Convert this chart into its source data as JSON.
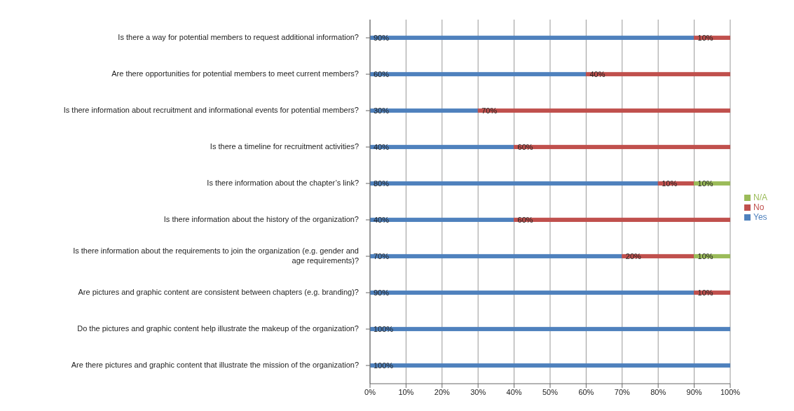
{
  "chart_data": {
    "type": "bar",
    "orientation": "horizontal",
    "stacked": true,
    "categories": [
      "Is there a way for potential members to request additional information?",
      "Are there opportunities for potential members to meet current members?",
      "Is there information about recruitment and informational events for potential members?",
      "Is there a timeline for recruitment activities?",
      "Is there information about the chapter’s link?",
      "Is there information about the history of the organization?",
      "Is there information about the requirements to join the organization (e.g. gender and age requirements)?",
      "Are pictures and graphic content are consistent between chapters (e.g. branding)?",
      "Do the pictures and graphic content help illustrate the makeup of the organization?",
      "Are there pictures and graphic content that illustrate the mission of the organization?"
    ],
    "series": [
      {
        "name": "Yes",
        "color": "#4f81bd",
        "values": [
          90,
          60,
          30,
          40,
          80,
          40,
          70,
          90,
          100,
          100
        ],
        "value_labels": [
          "90%",
          "60%",
          "30%",
          "40%",
          "80%",
          "40%",
          "70%",
          "90%",
          "100%",
          "100%"
        ]
      },
      {
        "name": "No",
        "color": "#c0504d",
        "values": [
          10,
          40,
          70,
          60,
          10,
          60,
          20,
          10,
          null,
          null
        ],
        "value_labels": [
          "10%",
          "40%",
          "70%",
          "60%",
          "10%",
          "60%",
          "20%",
          "10%",
          null,
          null
        ]
      },
      {
        "name": "N/A",
        "color": "#9bbb59",
        "values": [
          null,
          null,
          null,
          null,
          10,
          null,
          10,
          null,
          null,
          null
        ],
        "value_labels": [
          null,
          null,
          null,
          null,
          "10%",
          null,
          "10%",
          null,
          null,
          null
        ]
      }
    ],
    "xlim": [
      0,
      100
    ],
    "xticks": [
      {
        "value": 0,
        "label": "0%"
      },
      {
        "value": 10,
        "label": "10%"
      },
      {
        "value": 20,
        "label": "20%"
      },
      {
        "value": 30,
        "label": "30%"
      },
      {
        "value": 40,
        "label": "40%"
      },
      {
        "value": 50,
        "label": "50%"
      },
      {
        "value": 60,
        "label": "60%"
      },
      {
        "value": 70,
        "label": "70%"
      },
      {
        "value": 80,
        "label": "80%"
      },
      {
        "value": 90,
        "label": "90%"
      },
      {
        "value": 100,
        "label": "100%"
      }
    ],
    "grid": "x",
    "legend": "right"
  }
}
